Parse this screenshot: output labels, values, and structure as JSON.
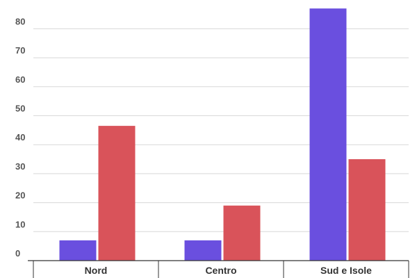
{
  "chart_data": {
    "type": "bar",
    "title": "",
    "xlabel": "",
    "ylabel": "",
    "categories": [
      "Nord",
      "Centro",
      "Sud e Isole"
    ],
    "series": [
      {
        "values": [
          7,
          7,
          87
        ],
        "color": "#6a4fdf"
      },
      {
        "values": [
          46.5,
          19,
          35
        ],
        "color": "#d9535a"
      }
    ],
    "ylim": [
      0,
      90
    ],
    "yticks": [
      0,
      10,
      20,
      30,
      40,
      50,
      60,
      70,
      80
    ],
    "grid": true,
    "legend": "none"
  }
}
